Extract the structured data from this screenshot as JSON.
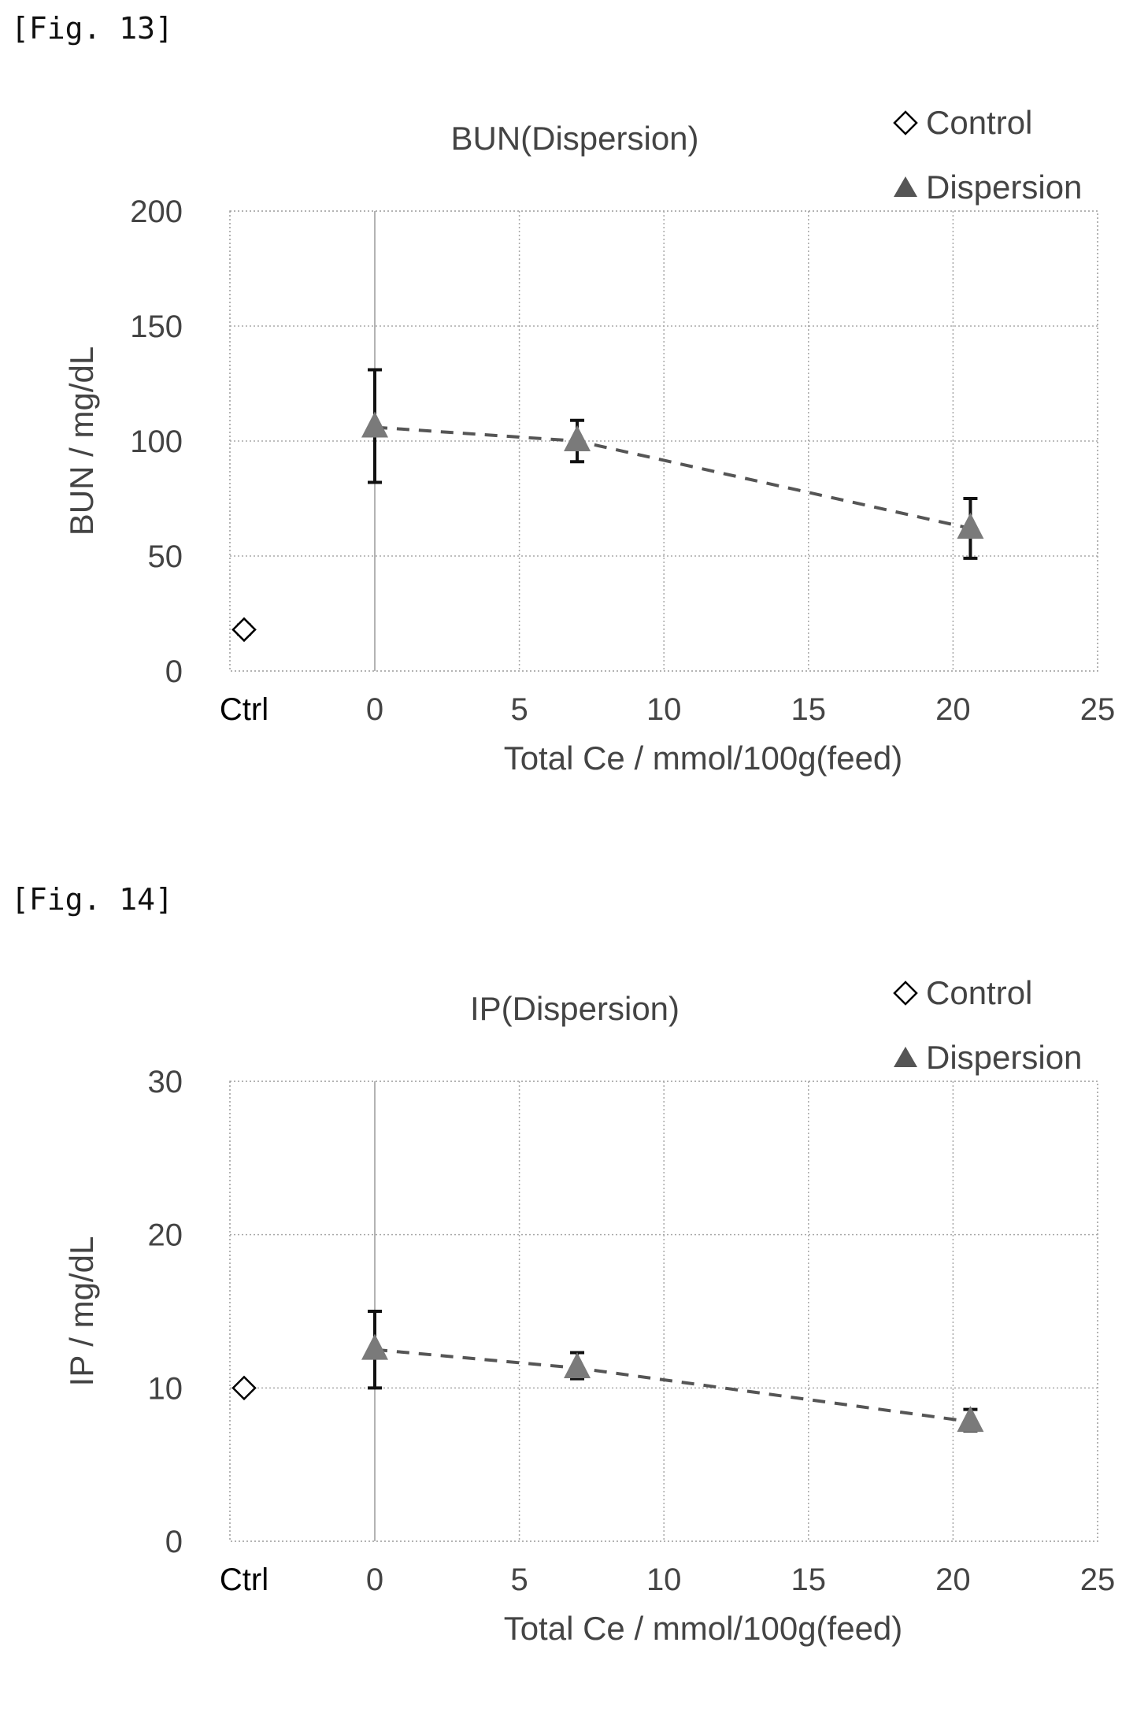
{
  "figures": [
    {
      "label": "[Fig. 13]"
    },
    {
      "label": "[Fig. 14]"
    }
  ],
  "chart_data": [
    {
      "type": "scatter",
      "title": "BUN(Dispersion)",
      "xlabel": "Total Ce / mmol/100g(feed)",
      "ylabel": "BUN / mg/dL",
      "ctrl_tick_label": "Ctrl",
      "xlim": [
        0,
        25
      ],
      "ylim": [
        0,
        200
      ],
      "xticks": [
        0,
        5,
        10,
        15,
        20,
        25
      ],
      "yticks": [
        0,
        50,
        100,
        150,
        200
      ],
      "grid": true,
      "legend_position": "top-right",
      "series": [
        {
          "name": "Control",
          "marker": "diamond-open",
          "color": "#000000",
          "points": [
            {
              "x": "Ctrl",
              "y": 18,
              "err_low": 16,
              "err_high": 20
            }
          ]
        },
        {
          "name": "Dispersion",
          "marker": "triangle",
          "color": "#7a7a7a",
          "line": "dashed",
          "points": [
            {
              "x": 0,
              "y": 106,
              "err_low": 82,
              "err_high": 131
            },
            {
              "x": 7,
              "y": 100,
              "err_low": 91,
              "err_high": 109
            },
            {
              "x": 20.6,
              "y": 62,
              "err_low": 49,
              "err_high": 75
            }
          ]
        }
      ]
    },
    {
      "type": "scatter",
      "title": "IP(Dispersion)",
      "xlabel": "Total Ce / mmol/100g(feed)",
      "ylabel": "IP / mg/dL",
      "ctrl_tick_label": "Ctrl",
      "xlim": [
        0,
        25
      ],
      "ylim": [
        0,
        30
      ],
      "xticks": [
        0,
        5,
        10,
        15,
        20,
        25
      ],
      "yticks": [
        0,
        10,
        20,
        30
      ],
      "grid": true,
      "legend_position": "top-right",
      "series": [
        {
          "name": "Control",
          "marker": "diamond-open",
          "color": "#000000",
          "points": [
            {
              "x": "Ctrl",
              "y": 10,
              "err_low": 10,
              "err_high": 10
            }
          ]
        },
        {
          "name": "Dispersion",
          "marker": "triangle",
          "color": "#7a7a7a",
          "line": "dashed",
          "points": [
            {
              "x": 0,
              "y": 12.5,
              "err_low": 10,
              "err_high": 15
            },
            {
              "x": 7,
              "y": 11.3,
              "err_low": 10.6,
              "err_high": 12.3
            },
            {
              "x": 20.6,
              "y": 7.8,
              "err_low": 7.2,
              "err_high": 8.6
            }
          ]
        }
      ]
    }
  ]
}
